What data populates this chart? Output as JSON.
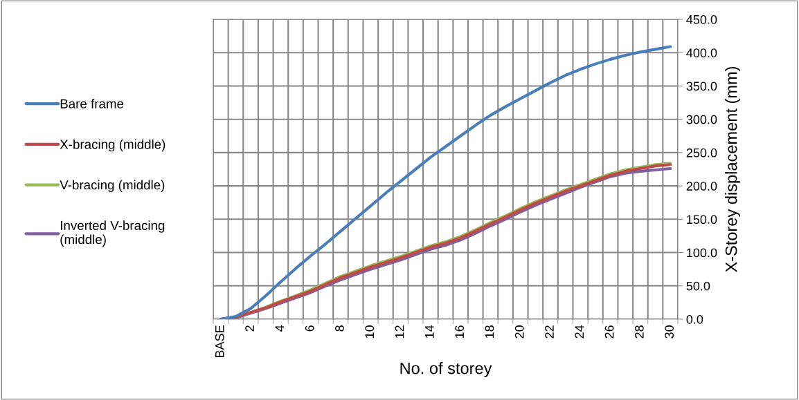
{
  "chart_data": {
    "type": "line",
    "xlabel": "No. of storey",
    "ylabel": "X-Storey displacement (mm)",
    "categories": [
      "BASE",
      null,
      "2",
      null,
      "4",
      null,
      "6",
      null,
      "8",
      null,
      "10",
      null,
      "12",
      null,
      "14",
      null,
      "16",
      null,
      "18",
      null,
      "20",
      null,
      "22",
      null,
      "24",
      null,
      "26",
      null,
      "28",
      null,
      "30"
    ],
    "series": [
      {
        "name": "Bare frame",
        "color": "#4a7ebb",
        "values": [
          0,
          4,
          16,
          35,
          56,
          76,
          95,
          113,
          132,
          151,
          170,
          189,
          207,
          225,
          243,
          259,
          275,
          291,
          306,
          319,
          331,
          343,
          355,
          366,
          375,
          383,
          390,
          396,
          401,
          405,
          409
        ]
      },
      {
        "name": "X-bracing (middle)",
        "color": "#be4b48",
        "values": [
          0,
          3,
          10,
          17,
          26,
          34,
          42,
          52,
          62,
          70,
          78,
          85,
          92,
          100,
          108,
          114,
          122,
          132,
          143,
          153,
          164,
          174,
          183,
          192,
          200,
          208,
          216,
          222,
          226,
          230,
          232
        ]
      },
      {
        "name": "V-bracing (middle)",
        "color": "#98b954",
        "values": [
          0,
          3,
          10,
          18,
          27,
          35,
          44,
          54,
          64,
          72,
          80,
          87,
          94,
          102,
          110,
          116,
          124,
          134,
          145,
          155,
          166,
          176,
          185,
          194,
          202,
          210,
          218,
          224,
          228,
          232,
          234
        ]
      },
      {
        "name": "Inverted V-bracing\n(middle)",
        "color": "#7d60a0",
        "values": [
          0,
          2,
          9,
          16,
          24,
          32,
          40,
          50,
          59,
          67,
          75,
          82,
          89,
          97,
          105,
          111,
          119,
          129,
          140,
          150,
          161,
          171,
          180,
          189,
          198,
          206,
          214,
          219,
          222,
          224,
          226
        ]
      }
    ],
    "ylim": [
      0,
      450
    ],
    "yticks": [
      {
        "value": 0,
        "label": "0.0"
      },
      {
        "value": 50,
        "label": "50.0"
      },
      {
        "value": 100,
        "label": "100.0"
      },
      {
        "value": 150,
        "label": "150.0"
      },
      {
        "value": 200,
        "label": "200.0"
      },
      {
        "value": 250,
        "label": "250.0"
      },
      {
        "value": 300,
        "label": "300.0"
      },
      {
        "value": 350,
        "label": "350.0"
      },
      {
        "value": 400,
        "label": "400.0"
      },
      {
        "value": 450,
        "label": "450.0"
      }
    ],
    "grid": true,
    "legend": "left",
    "marker": "none",
    "line_style": "solid"
  }
}
